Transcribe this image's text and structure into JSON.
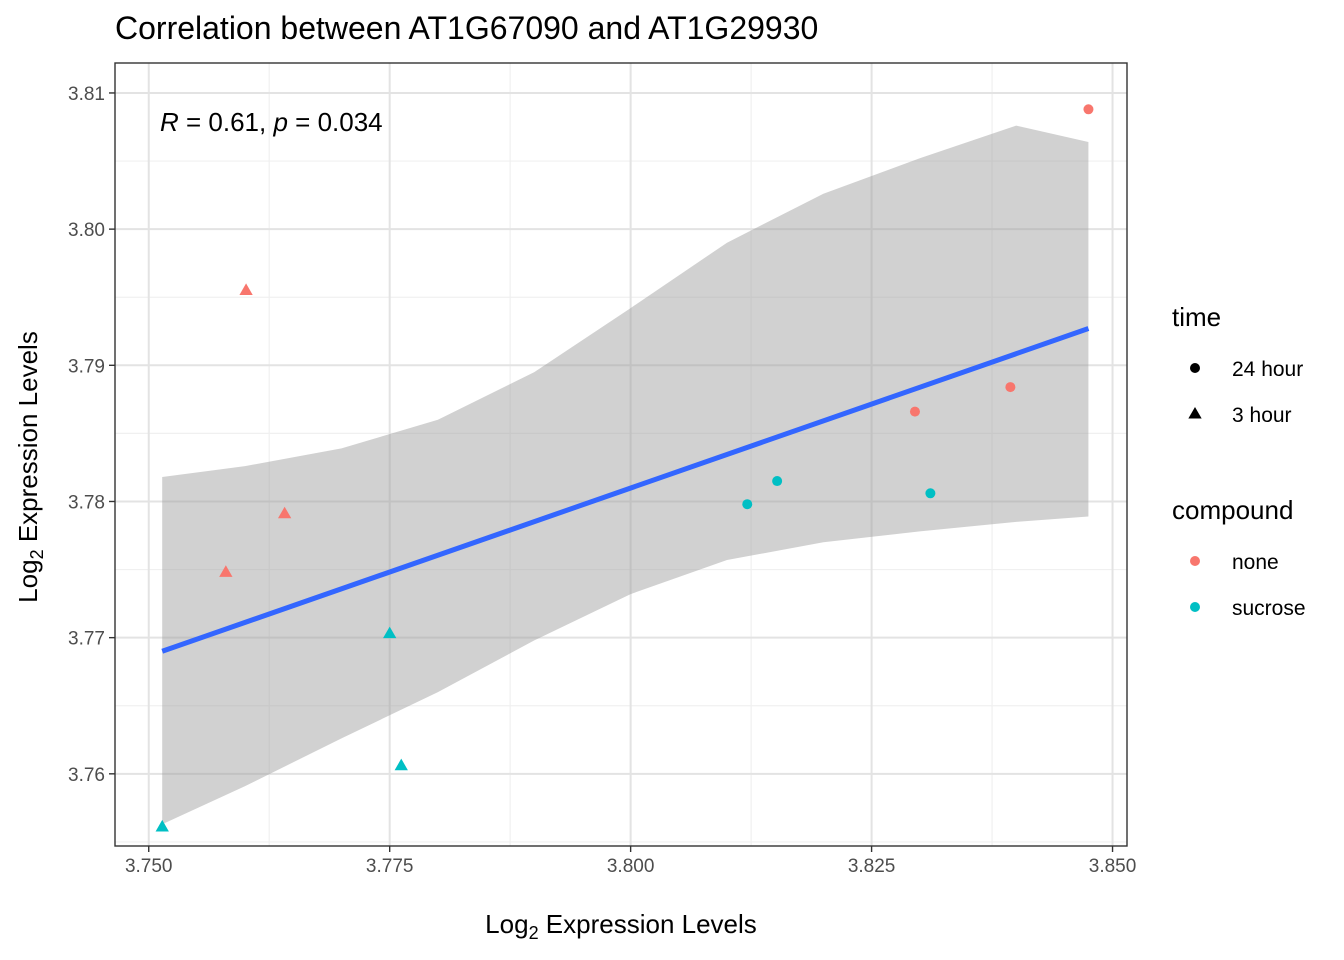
{
  "chart_data": {
    "type": "scatter",
    "title": "Correlation between AT1G67090 and AT1G29930",
    "xlabel": {
      "prefix": "Log",
      "sub": "2",
      "suffix": " Expression Levels"
    },
    "ylabel": {
      "prefix": "Log",
      "sub": "2",
      "suffix": " Expression Levels"
    },
    "xlim": [
      3.7465,
      3.8515
    ],
    "ylim": [
      3.7547,
      3.8122
    ],
    "x_ticks": [
      3.75,
      3.775,
      3.8,
      3.825,
      3.85
    ],
    "x_tick_labels": [
      "3.750",
      "3.775",
      "3.800",
      "3.825",
      "3.850"
    ],
    "y_ticks": [
      3.76,
      3.77,
      3.78,
      3.79,
      3.8,
      3.81
    ],
    "y_tick_labels": [
      "3.76",
      "3.77",
      "3.78",
      "3.79",
      "3.80",
      "3.81"
    ],
    "grid": true,
    "annotation": {
      "r_symbol": "R",
      "r_text": " = 0.61, ",
      "p_symbol": "p",
      "p_text": " = 0.034"
    },
    "points": [
      {
        "x": 3.8475,
        "y": 3.8088,
        "time": "24 hour",
        "compound": "none"
      },
      {
        "x": 3.7601,
        "y": 3.7955,
        "time": "3 hour",
        "compound": "none"
      },
      {
        "x": 3.8394,
        "y": 3.7884,
        "time": "24 hour",
        "compound": "none"
      },
      {
        "x": 3.8295,
        "y": 3.7866,
        "time": "24 hour",
        "compound": "none"
      },
      {
        "x": 3.8152,
        "y": 3.7815,
        "time": "24 hour",
        "compound": "sucrose"
      },
      {
        "x": 3.8311,
        "y": 3.7806,
        "time": "24 hour",
        "compound": "sucrose"
      },
      {
        "x": 3.8121,
        "y": 3.7798,
        "time": "24 hour",
        "compound": "sucrose"
      },
      {
        "x": 3.7641,
        "y": 3.7791,
        "time": "3 hour",
        "compound": "none"
      },
      {
        "x": 3.758,
        "y": 3.7748,
        "time": "3 hour",
        "compound": "none"
      },
      {
        "x": 3.775,
        "y": 3.7703,
        "time": "3 hour",
        "compound": "sucrose"
      },
      {
        "x": 3.7762,
        "y": 3.7606,
        "time": "3 hour",
        "compound": "sucrose"
      },
      {
        "x": 3.7514,
        "y": 3.7561,
        "time": "3 hour",
        "compound": "sucrose"
      }
    ],
    "regression": {
      "x": [
        3.7514,
        3.8475
      ],
      "y": [
        3.769,
        3.7927
      ],
      "color": "#3366FF",
      "ci_band": {
        "x": [
          3.7514,
          3.76,
          3.77,
          3.78,
          3.79,
          3.8,
          3.81,
          3.82,
          3.83,
          3.84,
          3.8475
        ],
        "upper": [
          3.7818,
          3.7826,
          3.7839,
          3.786,
          3.7895,
          3.7942,
          3.799,
          3.8026,
          3.8052,
          3.8076,
          3.8064
        ],
        "lower": [
          3.7563,
          3.7591,
          3.7626,
          3.766,
          3.7698,
          3.7732,
          3.7757,
          3.777,
          3.7778,
          3.7785,
          3.7789
        ],
        "fill": "#999999"
      }
    },
    "legends": [
      {
        "title": "time",
        "kind": "shape",
        "items": [
          {
            "label": "24 hour",
            "shape": "circle"
          },
          {
            "label": "3 hour",
            "shape": "triangle"
          }
        ]
      },
      {
        "title": "compound",
        "kind": "color",
        "items": [
          {
            "label": "none",
            "color": "#F8766D"
          },
          {
            "label": "sucrose",
            "color": "#00BFC4"
          }
        ]
      }
    ]
  }
}
